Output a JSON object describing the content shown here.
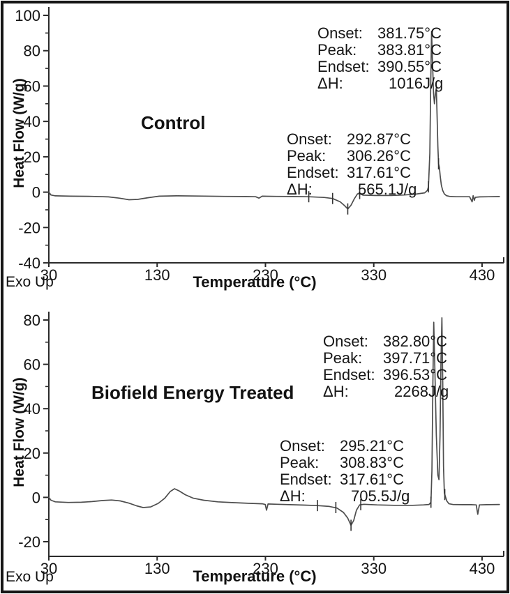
{
  "colors": {
    "curve": "#4d4d4d",
    "axis": "#2b2b2b",
    "text": "#141414"
  },
  "chart_data": [
    {
      "type": "line",
      "title": "Control",
      "xlabel": "Temperature (°C)",
      "ylabel": "Heat Flow (W/g)",
      "exo_label": "Exo Up",
      "xlim": [
        30,
        450
      ],
      "ylim": [
        -40,
        100
      ],
      "xticks": [
        30,
        130,
        230,
        330,
        430
      ],
      "yticks": [
        -40,
        -20,
        0,
        20,
        40,
        60,
        80,
        100
      ],
      "y_minor_step": 10,
      "grid": false,
      "legend": false,
      "annotations": [
        {
          "name": "main-peak",
          "rows": [
            {
              "label": "Onset:",
              "value": "381.75°C"
            },
            {
              "label": "Peak:",
              "value": "383.81°C"
            },
            {
              "label": "Endset:",
              "value": "390.55°C"
            },
            {
              "label": "ΔH:",
              "value": "1016J/g"
            }
          ]
        },
        {
          "name": "secondary-peak",
          "rows": [
            {
              "label": "Onset:",
              "value": "292.87°C"
            },
            {
              "label": "Peak:",
              "value": "306.26°C"
            },
            {
              "label": "Endset:",
              "value": "317.61°C"
            },
            {
              "label": "ΔH:",
              "value": "565.1J/g"
            }
          ]
        }
      ],
      "series": [
        {
          "name": "DSC heat flow",
          "points": [
            [
              30,
              0
            ],
            [
              32,
              -1.6
            ],
            [
              36,
              -2.1
            ],
            [
              50,
              -2.3
            ],
            [
              70,
              -2.4
            ],
            [
              85,
              -2.7
            ],
            [
              95,
              -3.4
            ],
            [
              104,
              -4.3
            ],
            [
              112,
              -4.1
            ],
            [
              122,
              -3.1
            ],
            [
              132,
              -2.3
            ],
            [
              148,
              -2.1
            ],
            [
              168,
              -2.2
            ],
            [
              192,
              -2.4
            ],
            [
              212,
              -2.5
            ],
            [
              221,
              -2.6
            ],
            [
              224,
              -3.4
            ],
            [
              227,
              -2.3
            ],
            [
              240,
              -2.4
            ],
            [
              256,
              -2.5
            ],
            [
              270,
              -2.6
            ],
            [
              284,
              -3.0
            ],
            [
              292,
              -3.6
            ],
            [
              299,
              -5.5
            ],
            [
              303,
              -7.6
            ],
            [
              306,
              -9.5
            ],
            [
              309,
              -7.4
            ],
            [
              312,
              -3.8
            ],
            [
              315,
              -1.0
            ],
            [
              317,
              -0.8
            ],
            [
              320,
              -1.7
            ],
            [
              331,
              -1.9
            ],
            [
              346,
              -1.9
            ],
            [
              358,
              -1.6
            ],
            [
              369,
              -1.1
            ],
            [
              377,
              -0.4
            ],
            [
              379.5,
              1.0
            ],
            [
              380.5,
              3
            ],
            [
              381.8,
              22
            ],
            [
              382.6,
              62
            ],
            [
              383.4,
              91
            ],
            [
              384.2,
              74
            ],
            [
              385.2,
              56
            ],
            [
              386,
              50
            ],
            [
              387,
              56
            ],
            [
              387.8,
              59
            ],
            [
              388.5,
              43
            ],
            [
              389.2,
              26
            ],
            [
              389.8,
              16
            ],
            [
              390.6,
              14
            ],
            [
              391.4,
              9
            ],
            [
              392.4,
              4
            ],
            [
              393.6,
              1
            ],
            [
              395.2,
              -1.0
            ],
            [
              397.2,
              -2.0
            ],
            [
              400,
              -2.4
            ],
            [
              406,
              -2.6
            ],
            [
              413,
              -2.6
            ],
            [
              418.5,
              -2.6
            ],
            [
              419.8,
              -4.2
            ],
            [
              420.8,
              -5.5
            ],
            [
              421.8,
              -2.0
            ],
            [
              422.8,
              -4.6
            ],
            [
              423.8,
              -2.9
            ],
            [
              428,
              -2.7
            ],
            [
              436,
              -2.6
            ],
            [
              446,
              -2.5
            ]
          ]
        }
      ],
      "markers": [
        [
          270,
          -2.6
        ],
        [
          292,
          -3.6
        ],
        [
          317,
          -0.8
        ],
        [
          306,
          -9.5
        ],
        [
          380.5,
          3
        ],
        [
          389.8,
          16
        ]
      ]
    },
    {
      "type": "line",
      "title": "Biofield Energy Treated",
      "xlabel": "Temperature (°C)",
      "ylabel": "Heat Flow (W/g)",
      "exo_label": "Exo Up",
      "xlim": [
        30,
        450
      ],
      "ylim": [
        -20,
        80
      ],
      "xticks": [
        30,
        130,
        230,
        330,
        430
      ],
      "yticks": [
        -20,
        0,
        20,
        40,
        60,
        80
      ],
      "y_minor_step": 10,
      "grid": false,
      "legend": false,
      "annotations": [
        {
          "name": "main-peak",
          "rows": [
            {
              "label": "Onset:",
              "value": "382.80°C"
            },
            {
              "label": "Peak:",
              "value": "397.71°C"
            },
            {
              "label": "Endset:",
              "value": "396.53°C"
            },
            {
              "label": "ΔH:",
              "value": "2268J/g"
            }
          ]
        },
        {
          "name": "secondary-peak",
          "rows": [
            {
              "label": "Onset:",
              "value": "295.21°C"
            },
            {
              "label": "Peak:",
              "value": "308.83°C"
            },
            {
              "label": "Endset:",
              "value": "317.61°C"
            },
            {
              "label": "ΔH:",
              "value": "705.5J/g"
            }
          ]
        }
      ],
      "series": [
        {
          "name": "DSC heat flow",
          "points": [
            [
              30,
              0
            ],
            [
              32,
              -1.3
            ],
            [
              36,
              -2.0
            ],
            [
              48,
              -2.3
            ],
            [
              60,
              -2.2
            ],
            [
              70,
              -1.9
            ],
            [
              80,
              -1.4
            ],
            [
              88,
              -1.2
            ],
            [
              96,
              -1.6
            ],
            [
              104,
              -2.6
            ],
            [
              111,
              -3.8
            ],
            [
              117,
              -4.6
            ],
            [
              124,
              -4.3
            ],
            [
              131,
              -2.7
            ],
            [
              137,
              -0.4
            ],
            [
              142,
              2.6
            ],
            [
              146,
              3.9
            ],
            [
              150,
              3.0
            ],
            [
              156,
              1.2
            ],
            [
              163,
              -0.3
            ],
            [
              173,
              -1.3
            ],
            [
              186,
              -2.0
            ],
            [
              201,
              -2.4
            ],
            [
              216,
              -2.7
            ],
            [
              227,
              -2.9
            ],
            [
              229.8,
              -3.2
            ],
            [
              231,
              -5.8
            ],
            [
              232.4,
              -3.0
            ],
            [
              241,
              -3.1
            ],
            [
              253,
              -3.3
            ],
            [
              266,
              -3.5
            ],
            [
              278,
              -3.7
            ],
            [
              289,
              -4.1
            ],
            [
              296,
              -4.8
            ],
            [
              302,
              -6.8
            ],
            [
              306,
              -9.4
            ],
            [
              309,
              -12.6
            ],
            [
              311.5,
              -10.4
            ],
            [
              314,
              -5.8
            ],
            [
              317,
              -3.4
            ],
            [
              321,
              -3.1
            ],
            [
              333,
              -3.4
            ],
            [
              349,
              -3.6
            ],
            [
              366,
              -3.6
            ],
            [
              376,
              -3.4
            ],
            [
              381,
              -3.2
            ],
            [
              382.8,
              -2.2
            ],
            [
              383.7,
              12
            ],
            [
              384.6,
              52
            ],
            [
              385.4,
              79
            ],
            [
              386.4,
              58
            ],
            [
              387.8,
              28
            ],
            [
              389.2,
              10
            ],
            [
              390.2,
              8
            ],
            [
              391.2,
              28
            ],
            [
              392.1,
              62
            ],
            [
              392.9,
              81
            ],
            [
              393.7,
              52
            ],
            [
              394.4,
              14
            ],
            [
              395.2,
              2
            ],
            [
              396,
              0.6
            ],
            [
              397.4,
              -1.6
            ],
            [
              399.4,
              -2.9
            ],
            [
              403,
              -3.2
            ],
            [
              412,
              -3.3
            ],
            [
              420,
              -3.3
            ],
            [
              424.6,
              -3.4
            ],
            [
              426,
              -7.6
            ],
            [
              427.6,
              -3.4
            ],
            [
              434,
              -3.3
            ],
            [
              446,
              -3.2
            ]
          ]
        }
      ],
      "markers": [
        [
          278,
          -3.7
        ],
        [
          295,
          -4.6
        ],
        [
          318,
          -3.3
        ],
        [
          309,
          -12.6
        ],
        [
          382.8,
          -2.2
        ],
        [
          395.6,
          1.3
        ]
      ]
    }
  ]
}
